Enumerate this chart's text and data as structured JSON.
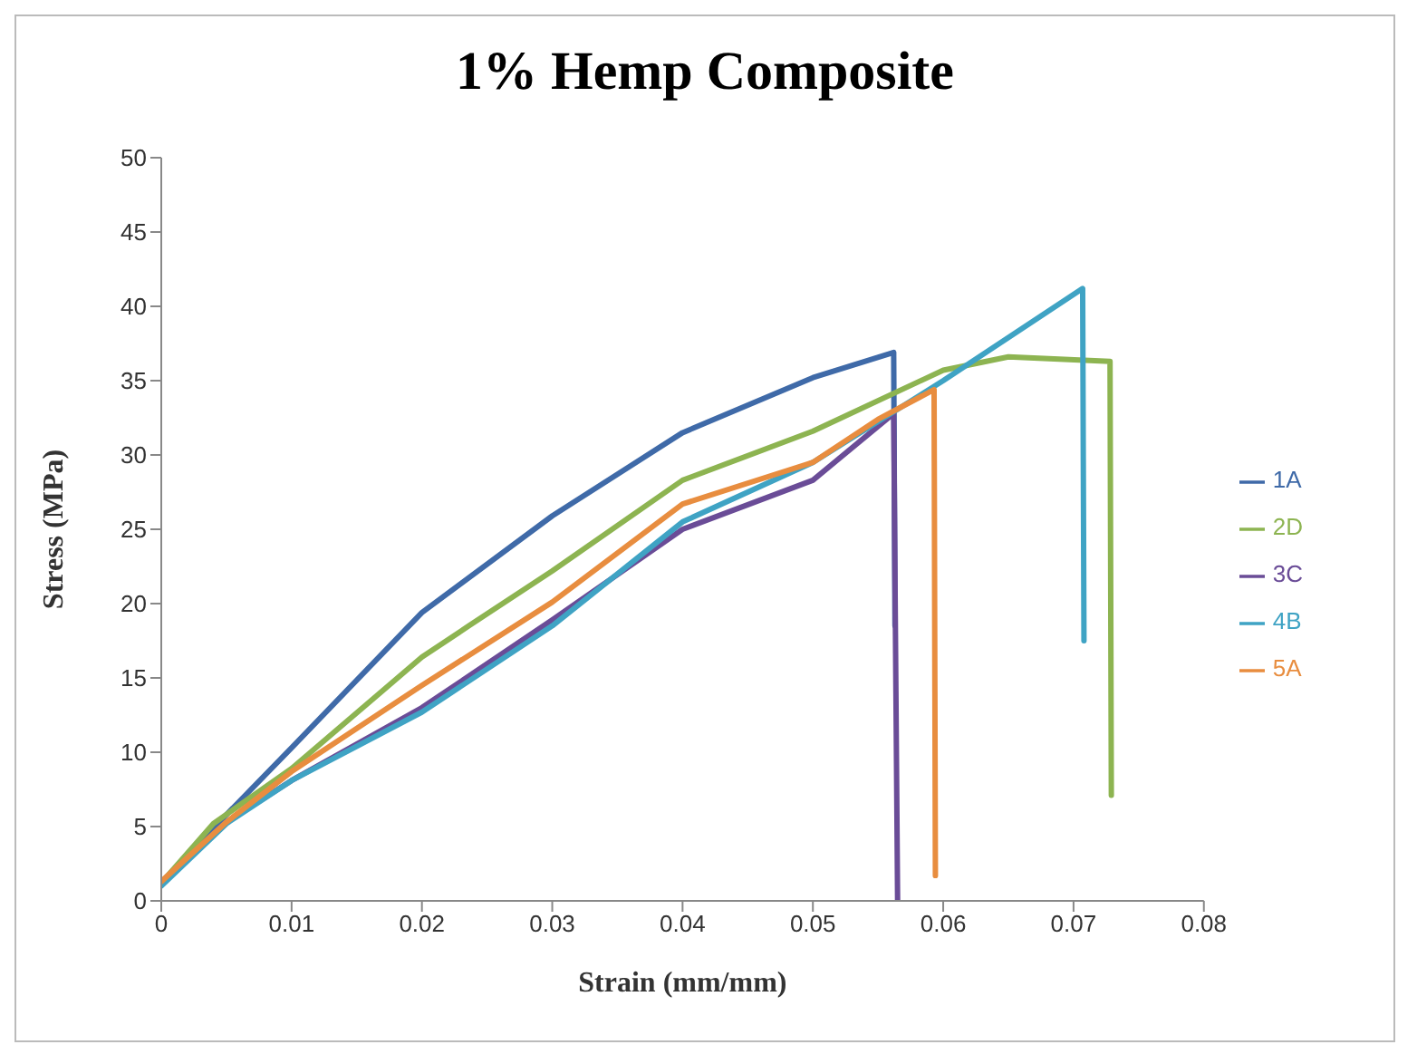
{
  "chart_data": {
    "type": "line",
    "title": "1% Hemp Composite",
    "xlabel": "Strain (mm/mm)",
    "ylabel": "Stress (MPa)",
    "xlim": [
      0,
      0.08
    ],
    "xticks": [
      0,
      0.01,
      0.02,
      0.03,
      0.04,
      0.05,
      0.06,
      0.07,
      0.08
    ],
    "ylim": [
      0,
      50
    ],
    "yticks": [
      0,
      5,
      10,
      15,
      20,
      25,
      30,
      35,
      40,
      45,
      50
    ],
    "grid": false,
    "legend": "right",
    "marker": "none",
    "line_style": "solid",
    "series": [
      {
        "name": "1A",
        "color": "#3f6aa8",
        "x": [
          0,
          0.005,
          0.01,
          0.02,
          0.03,
          0.04,
          0.05,
          0.0562,
          0.0563
        ],
        "values": [
          1.2,
          5.8,
          10.3,
          19.4,
          25.9,
          31.5,
          35.2,
          36.9,
          18.5
        ]
      },
      {
        "name": "2D",
        "color": "#8db451",
        "x": [
          0,
          0.004,
          0.01,
          0.02,
          0.0236,
          0.03,
          0.04,
          0.05,
          0.06,
          0.065,
          0.0728,
          0.0729
        ],
        "values": [
          1.2,
          5.2,
          8.9,
          16.4,
          18.5,
          22.2,
          28.3,
          31.6,
          35.7,
          36.6,
          36.3,
          7.1
        ]
      },
      {
        "name": "3C",
        "color": "#6a4c97",
        "x": [
          0,
          0.005,
          0.01,
          0.02,
          0.03,
          0.04,
          0.05,
          0.0562,
          0.0565
        ],
        "values": [
          1.2,
          5.3,
          8.1,
          13.0,
          18.9,
          25.0,
          28.3,
          32.8,
          0
        ]
      },
      {
        "name": "4B",
        "color": "#3fa3c4",
        "x": [
          0,
          0.005,
          0.01,
          0.02,
          0.03,
          0.04,
          0.05,
          0.06,
          0.0707,
          0.0708
        ],
        "values": [
          1,
          5.2,
          8.1,
          12.7,
          18.5,
          25.5,
          29.5,
          35.0,
          41.2,
          17.5
        ]
      },
      {
        "name": "5A",
        "color": "#e88d3f",
        "x": [
          0,
          0.005,
          0.01,
          0.02,
          0.03,
          0.04,
          0.05,
          0.055,
          0.0593,
          0.0594
        ],
        "values": [
          1.3,
          5.3,
          8.7,
          14.5,
          20.1,
          26.7,
          29.5,
          32.4,
          34.4,
          1.7
        ]
      }
    ]
  }
}
